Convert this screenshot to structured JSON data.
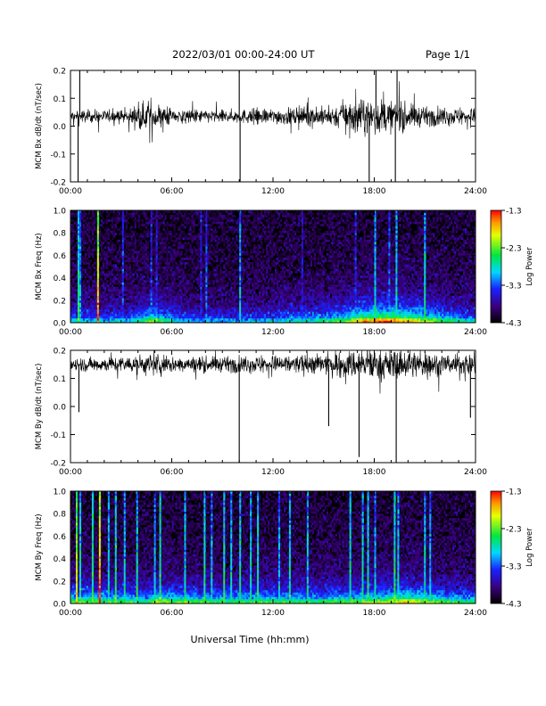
{
  "header": {
    "title": "2022/03/01  00:00-24:00 UT",
    "page": "Page 1/1"
  },
  "footer": {
    "xlabel": "Universal Time (hh:mm)"
  },
  "chart_data": [
    {
      "type": "line",
      "ylabel": "MCM Bx dB/dt (nT/sec)",
      "ylim": [
        -0.2,
        0.2
      ],
      "yticks": [
        "0.2",
        "0.1",
        "0.0",
        "-0.1",
        "-0.2"
      ],
      "xlim": [
        0,
        24
      ],
      "xticks": [
        "00:00",
        "06:00",
        "12:00",
        "18:00",
        "24:00"
      ],
      "baseline": 0.035,
      "activity": [
        [
          0,
          0.5
        ],
        [
          3.2,
          0.5
        ],
        [
          4.6,
          1.2
        ],
        [
          5.3,
          1.0
        ],
        [
          6.5,
          0.55
        ],
        [
          9.0,
          0.5
        ],
        [
          11.0,
          0.6
        ],
        [
          13.5,
          0.7
        ],
        [
          15.5,
          0.8
        ],
        [
          16.7,
          1.3
        ],
        [
          18.3,
          1.35
        ],
        [
          19.5,
          1.15
        ],
        [
          21.0,
          0.75
        ],
        [
          24.0,
          0.65
        ]
      ],
      "spikes": [
        {
          "x": 0.45,
          "y": -0.2
        },
        {
          "x": 0.55,
          "y": 0.2
        },
        {
          "x": 10.0,
          "y": 0.2
        },
        {
          "x": 10.05,
          "y": -0.2
        },
        {
          "x": 17.7,
          "y": -0.2
        },
        {
          "x": 18.1,
          "y": 0.2
        },
        {
          "x": 19.25,
          "y": -0.2
        },
        {
          "x": 19.35,
          "y": 0.2
        }
      ]
    },
    {
      "type": "heatmap",
      "ylabel": "MCM Bx Freq (Hz)",
      "ylim": [
        0,
        1.0
      ],
      "yticks": [
        "1.0",
        "0.8",
        "0.6",
        "0.4",
        "0.2",
        "0.0"
      ],
      "xlim": [
        0,
        24
      ],
      "xticks": [
        "00:00",
        "06:00",
        "12:00",
        "18:00",
        "24:00"
      ],
      "colorbar": {
        "label": "Log Power",
        "range": [
          -4.3,
          -1.3
        ],
        "ticks": [
          "-1.3",
          "-2.3",
          "-3.3",
          "-4.3"
        ]
      },
      "activity": [
        [
          0,
          0.45
        ],
        [
          3.5,
          0.45
        ],
        [
          4.8,
          0.75
        ],
        [
          5.5,
          0.6
        ],
        [
          7.0,
          0.4
        ],
        [
          10.0,
          0.4
        ],
        [
          12.0,
          0.45
        ],
        [
          14.5,
          0.55
        ],
        [
          16.0,
          0.65
        ],
        [
          17.5,
          0.95
        ],
        [
          19.0,
          1.0
        ],
        [
          20.5,
          0.85
        ],
        [
          22.5,
          0.6
        ],
        [
          24.0,
          0.5
        ]
      ],
      "stripes": [
        {
          "x": 0.4,
          "level": 0.65
        },
        {
          "x": 0.55,
          "level": 0.45
        },
        {
          "x": 1.55,
          "level": 0.95
        },
        {
          "x": 3.0,
          "level": 0.35
        },
        {
          "x": 4.7,
          "level": 0.35
        },
        {
          "x": 5.0,
          "level": 0.3
        },
        {
          "x": 7.7,
          "level": 0.3
        },
        {
          "x": 8.0,
          "level": 0.4
        },
        {
          "x": 10.0,
          "level": 0.5
        },
        {
          "x": 13.7,
          "level": 0.3
        },
        {
          "x": 16.8,
          "level": 0.35
        },
        {
          "x": 18.05,
          "level": 0.55
        },
        {
          "x": 18.8,
          "level": 0.4
        },
        {
          "x": 19.3,
          "level": 0.55
        },
        {
          "x": 20.95,
          "level": 0.6
        }
      ]
    },
    {
      "type": "line",
      "ylabel": "MCM By dB/dt (nT/sec)",
      "ylim": [
        -0.2,
        0.2
      ],
      "yticks": [
        "0.2",
        "0.1",
        "0.0",
        "-0.1",
        "-0.2"
      ],
      "xlim": [
        0,
        24
      ],
      "xticks": [
        "00:00",
        "06:00",
        "12:00",
        "18:00",
        "24:00"
      ],
      "baseline": 0.15,
      "activity": [
        [
          0,
          0.55
        ],
        [
          3.0,
          0.6
        ],
        [
          5.0,
          0.9
        ],
        [
          6.5,
          0.6
        ],
        [
          9.0,
          0.6
        ],
        [
          11.5,
          0.7
        ],
        [
          13.5,
          0.75
        ],
        [
          15.5,
          0.85
        ],
        [
          17.0,
          1.2
        ],
        [
          18.5,
          1.25
        ],
        [
          20.0,
          1.1
        ],
        [
          22.0,
          0.9
        ],
        [
          24.0,
          0.85
        ]
      ],
      "spikes": [
        {
          "x": 0.5,
          "y": -0.02
        },
        {
          "x": 10.0,
          "y": -0.2
        },
        {
          "x": 15.3,
          "y": -0.07
        },
        {
          "x": 17.1,
          "y": -0.18
        },
        {
          "x": 19.3,
          "y": -0.2
        },
        {
          "x": 23.7,
          "y": -0.04
        }
      ]
    },
    {
      "type": "heatmap",
      "ylabel": "MCM By Freq (Hz)",
      "ylim": [
        0,
        1.0
      ],
      "yticks": [
        "1.0",
        "0.8",
        "0.6",
        "0.4",
        "0.2",
        "0.0"
      ],
      "xlim": [
        0,
        24
      ],
      "xticks": [
        "00:00",
        "06:00",
        "12:00",
        "18:00",
        "24:00"
      ],
      "colorbar": {
        "label": "Log Power",
        "range": [
          -4.3,
          -1.3
        ],
        "ticks": [
          "-1.3",
          "-2.3",
          "-3.3",
          "-4.3"
        ]
      },
      "activity": [
        [
          0,
          0.7
        ],
        [
          2.5,
          0.65
        ],
        [
          4.5,
          0.6
        ],
        [
          5.2,
          0.75
        ],
        [
          7.0,
          0.65
        ],
        [
          9.5,
          0.6
        ],
        [
          12.0,
          0.65
        ],
        [
          14.5,
          0.6
        ],
        [
          16.0,
          0.65
        ],
        [
          18.0,
          0.75
        ],
        [
          20.0,
          0.85
        ],
        [
          21.5,
          0.7
        ],
        [
          24.0,
          0.55
        ]
      ],
      "stripes": [
        {
          "x": 0.3,
          "level": 0.85
        },
        {
          "x": 0.55,
          "level": 0.6
        },
        {
          "x": 1.3,
          "level": 0.65
        },
        {
          "x": 1.7,
          "level": 1.0
        },
        {
          "x": 2.2,
          "level": 0.55
        },
        {
          "x": 2.6,
          "level": 0.65
        },
        {
          "x": 3.2,
          "level": 0.55
        },
        {
          "x": 3.9,
          "level": 0.6
        },
        {
          "x": 4.9,
          "level": 0.5
        },
        {
          "x": 5.3,
          "level": 0.65
        },
        {
          "x": 6.7,
          "level": 0.55
        },
        {
          "x": 7.9,
          "level": 0.6
        },
        {
          "x": 8.3,
          "level": 0.5
        },
        {
          "x": 9.0,
          "level": 0.6
        },
        {
          "x": 9.5,
          "level": 0.55
        },
        {
          "x": 10.0,
          "level": 0.6
        },
        {
          "x": 10.6,
          "level": 0.55
        },
        {
          "x": 11.0,
          "level": 0.6
        },
        {
          "x": 12.3,
          "level": 0.5
        },
        {
          "x": 12.9,
          "level": 0.55
        },
        {
          "x": 14.0,
          "level": 0.55
        },
        {
          "x": 16.5,
          "level": 0.6
        },
        {
          "x": 17.3,
          "level": 0.6
        },
        {
          "x": 17.6,
          "level": 0.6
        },
        {
          "x": 18.0,
          "level": 0.5
        },
        {
          "x": 19.2,
          "level": 0.65
        },
        {
          "x": 19.4,
          "level": 0.55
        },
        {
          "x": 20.95,
          "level": 0.55
        },
        {
          "x": 21.3,
          "level": 0.5
        }
      ]
    }
  ]
}
